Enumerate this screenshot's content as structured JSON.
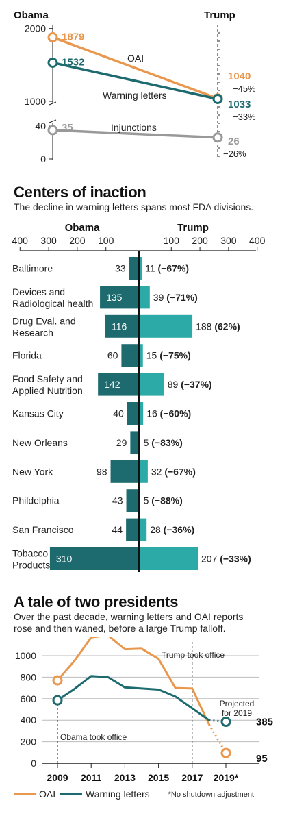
{
  "colors": {
    "oai": "#E8974D",
    "warning": "#1D6A6F",
    "injunctions": "#999999",
    "obama_bar": "#1D6A6F",
    "trump_bar": "#2BAAA8",
    "axis": "#222222"
  },
  "top": {
    "chart_data": {
      "type": "line",
      "categories": [
        "Obama",
        "Trump"
      ],
      "series": [
        {
          "name": "OAI",
          "values": [
            1879,
            1040
          ],
          "change": "−45%"
        },
        {
          "name": "Warning letters",
          "values": [
            1532,
            1033
          ],
          "change": "−33%"
        },
        {
          "name": "Injunctions",
          "values": [
            35,
            26
          ],
          "change": "−26%"
        }
      ],
      "y_ticks": [
        "2000",
        "1000",
        "40",
        "0"
      ],
      "segments": [
        {
          "ylim": [
            1000,
            2000
          ]
        },
        {
          "ylim": [
            0,
            40
          ]
        }
      ]
    }
  },
  "middle": {
    "title": "Centers of inaction",
    "subtitle": "The decline in warning letters spans most FDA divisions.",
    "chart_data": {
      "type": "bar",
      "left_header": "Obama",
      "right_header": "Trump",
      "ticks_left": [
        "400",
        "300",
        "200",
        "100"
      ],
      "ticks_right": [
        "100",
        "200",
        "300",
        "400"
      ],
      "xlim": [
        0,
        400
      ],
      "rows": [
        {
          "label": [
            "Baltimore"
          ],
          "obama": 33,
          "obama_label": "33",
          "trump": 11,
          "trump_label": "11",
          "change": "(−67%)"
        },
        {
          "label": [
            "Devices and",
            "Radiological health"
          ],
          "obama": 135,
          "obama_label": "135",
          "trump": 39,
          "trump_label": "39",
          "change": "(−71%)"
        },
        {
          "label": [
            "Drug Eval. and",
            "Research"
          ],
          "obama": 116,
          "obama_label": "116",
          "trump": 188,
          "trump_label": "188",
          "change": "(62%)"
        },
        {
          "label": [
            "Florida"
          ],
          "obama": 60,
          "obama_label": "60",
          "trump": 15,
          "trump_label": "15",
          "change": "(−75%)"
        },
        {
          "label": [
            "Food Safety and",
            "Applied Nutrition"
          ],
          "obama": 142,
          "obama_label": "142",
          "trump": 89,
          "trump_label": "89",
          "change": "(−37%)"
        },
        {
          "label": [
            "Kansas City"
          ],
          "obama": 40,
          "obama_label": "40",
          "trump": 16,
          "trump_label": "16",
          "change": "(−60%)"
        },
        {
          "label": [
            "New Orleans"
          ],
          "obama": 29,
          "obama_label": "29",
          "trump": 5,
          "trump_label": "5",
          "change": "(−83%)"
        },
        {
          "label": [
            "New York"
          ],
          "obama": 98,
          "obama_label": "98",
          "trump": 32,
          "trump_label": "32",
          "change": "(−67%)"
        },
        {
          "label": [
            "Phildelphia"
          ],
          "obama": 43,
          "obama_label": "43",
          "trump": 5,
          "trump_label": "5",
          "change": "(−88%)"
        },
        {
          "label": [
            "San Francisco"
          ],
          "obama": 44,
          "obama_label": "44",
          "trump": 28,
          "trump_label": "28",
          "change": "(−36%)"
        },
        {
          "label": [
            "Tobacco",
            "Products"
          ],
          "obama": 310,
          "obama_label": "310",
          "trump": 207,
          "trump_label": "207",
          "change": "(−33%)"
        }
      ]
    }
  },
  "bottom": {
    "title": "A tale of two presidents",
    "subtitle": [
      "Over the past decade, warning letters and OAI reports",
      "rose and then waned, before a large Trump falloff."
    ],
    "chart_data": {
      "type": "line",
      "x": [
        2009,
        2010,
        2011,
        2012,
        2013,
        2014,
        2015,
        2016,
        2017,
        2018
      ],
      "series": [
        {
          "name": "OAI",
          "values": [
            770,
            950,
            1170,
            1190,
            1060,
            1065,
            970,
            700,
            695,
            360
          ]
        },
        {
          "name": "Warning letters",
          "values": [
            585,
            690,
            810,
            800,
            705,
            695,
            685,
            620,
            510,
            400
          ]
        }
      ],
      "projected": {
        "x": 2019,
        "oai": 95,
        "warning": 385,
        "oai_label": "95",
        "warning_label": "385",
        "note": [
          "Projected",
          "for 2019"
        ]
      },
      "ylim": [
        0,
        1200
      ],
      "y_ticks": [
        0,
        200,
        400,
        600,
        800,
        1000
      ],
      "x_ticks": [
        "2009",
        "2011",
        "2013",
        "2015",
        "2017",
        "2019*"
      ],
      "annotations": {
        "trump": "Trump took office",
        "obama": "Obama took office"
      },
      "legend": [
        {
          "key": "oai",
          "label": "OAI"
        },
        {
          "key": "warning",
          "label": "Warning letters"
        }
      ],
      "footnote": "*No shutdown adjustment",
      "grid": true
    }
  }
}
